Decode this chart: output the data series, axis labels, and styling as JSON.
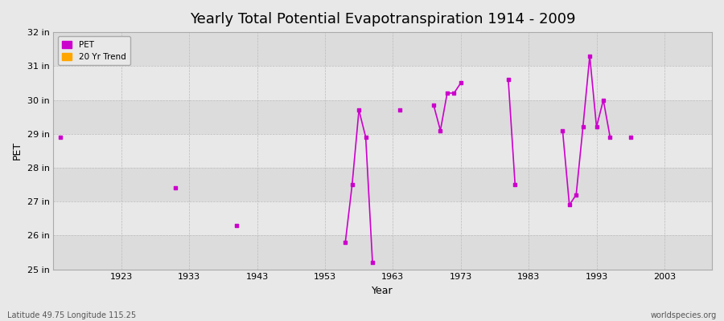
{
  "title": "Yearly Total Potential Evapotranspiration 1914 - 2009",
  "xlabel": "Year",
  "ylabel": "PET",
  "subtitle_left": "Latitude 49.75 Longitude 115.25",
  "subtitle_right": "worldspecies.org",
  "ylim": [
    25,
    32
  ],
  "xlim": [
    1913,
    2010
  ],
  "ytick_labels": [
    "25 in",
    "26 in",
    "27 in",
    "28 in",
    "29 in",
    "30 in",
    "31 in",
    "32 in"
  ],
  "ytick_values": [
    25,
    26,
    27,
    28,
    29,
    30,
    31,
    32
  ],
  "xtick_values": [
    1923,
    1933,
    1943,
    1953,
    1963,
    1973,
    1983,
    1993,
    2003
  ],
  "pet_data": [
    [
      1914,
      28.9
    ],
    [
      1931,
      27.4
    ],
    [
      1940,
      26.3
    ],
    [
      1956,
      25.8
    ],
    [
      1957,
      27.5
    ],
    [
      1958,
      29.7
    ],
    [
      1959,
      28.9
    ],
    [
      1960,
      25.2
    ],
    [
      1964,
      29.7
    ],
    [
      1969,
      29.85
    ],
    [
      1970,
      29.1
    ],
    [
      1971,
      30.2
    ],
    [
      1972,
      30.2
    ],
    [
      1973,
      30.5
    ],
    [
      1980,
      30.6
    ],
    [
      1981,
      27.5
    ],
    [
      1988,
      29.1
    ],
    [
      1989,
      26.9
    ],
    [
      1990,
      27.2
    ],
    [
      1991,
      29.2
    ],
    [
      1992,
      31.3
    ],
    [
      1993,
      29.2
    ],
    [
      1994,
      30.0
    ],
    [
      1995,
      28.9
    ],
    [
      1998,
      28.9
    ]
  ],
  "pet_color": "#CC00CC",
  "trend_color": "#FFA500",
  "bg_color": "#E8E8E8",
  "band_colors": [
    "#DCDCDC",
    "#E8E8E8"
  ],
  "grid_color": "#CCCCCC",
  "legend_bg": "#E8E8E8",
  "title_fontsize": 13
}
